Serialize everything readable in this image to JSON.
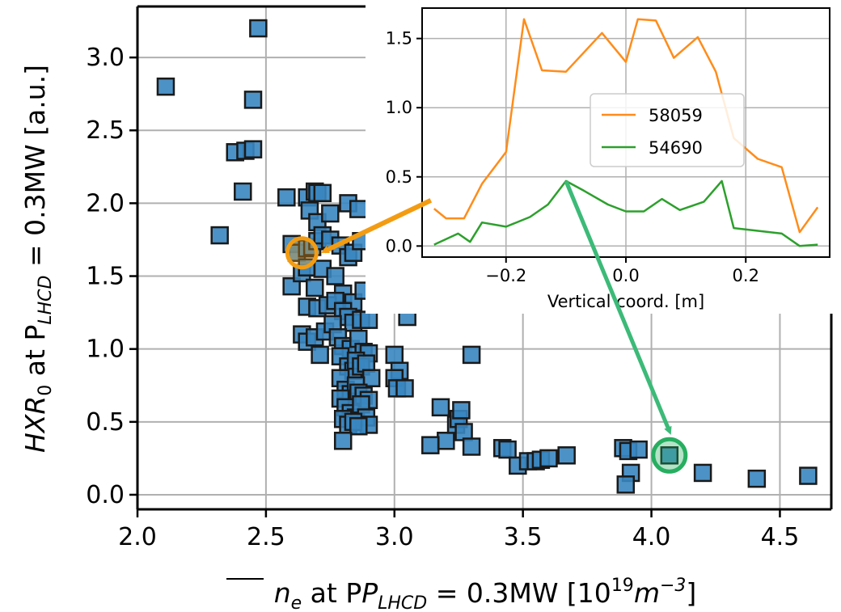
{
  "chart_data": [
    {
      "type": "scatter",
      "xlim": [
        2.0,
        4.7
      ],
      "ylim": [
        -0.1,
        3.35
      ],
      "grid": true,
      "xticks": [
        "2.0",
        "2.5",
        "3.0",
        "3.5",
        "4.0",
        "4.5"
      ],
      "yticks": [
        "0.0",
        "0.5",
        "1.0",
        "1.5",
        "2.0",
        "2.5",
        "3.0"
      ],
      "xlabel": {
        "prefix": "n",
        "sub": "e",
        "mid": " at P",
        "sub2": "LHCD",
        "eq": " = 0.3MW [10",
        "sup": "19",
        "unit": "m",
        "sup2": "−3",
        "end": "]"
      },
      "ylabel": {
        "pre": "HXR",
        "sub": "0",
        "mid": " at P",
        "sub2": "LHCD",
        "end": " = 0.3MW [a.u.]"
      },
      "marker_color": "#3a86c0",
      "highlight_orange": {
        "x": 2.64,
        "y": 1.66,
        "color": "#f39c12"
      },
      "highlight_green": {
        "x": 4.07,
        "y": 0.27,
        "color": "#27ae60"
      },
      "points": [
        [
          2.11,
          2.8
        ],
        [
          2.47,
          3.2
        ],
        [
          2.45,
          2.71
        ],
        [
          2.38,
          2.35
        ],
        [
          2.42,
          2.36
        ],
        [
          2.45,
          2.37
        ],
        [
          2.41,
          2.08
        ],
        [
          2.32,
          1.78
        ],
        [
          2.58,
          2.04
        ],
        [
          2.66,
          2.04
        ],
        [
          2.69,
          2.08
        ],
        [
          2.7,
          2.07
        ],
        [
          2.72,
          2.07
        ],
        [
          2.67,
          1.95
        ],
        [
          2.7,
          1.87
        ],
        [
          2.75,
          1.93
        ],
        [
          2.82,
          2.0
        ],
        [
          2.86,
          1.96
        ],
        [
          2.6,
          1.72
        ],
        [
          2.62,
          1.66
        ],
        [
          2.66,
          1.69
        ],
        [
          2.68,
          1.7
        ],
        [
          2.7,
          1.74
        ],
        [
          2.72,
          1.78
        ],
        [
          2.75,
          1.75
        ],
        [
          2.79,
          1.71
        ],
        [
          2.82,
          1.63
        ],
        [
          2.84,
          1.66
        ],
        [
          2.87,
          1.74
        ],
        [
          2.6,
          1.43
        ],
        [
          2.64,
          1.52
        ],
        [
          2.66,
          1.56
        ],
        [
          2.69,
          1.42
        ],
        [
          2.72,
          1.55
        ],
        [
          2.77,
          1.5
        ],
        [
          2.8,
          1.38
        ],
        [
          2.84,
          1.32
        ],
        [
          2.88,
          1.4
        ],
        [
          2.66,
          1.29
        ],
        [
          2.7,
          1.28
        ],
        [
          2.74,
          1.3
        ],
        [
          2.77,
          1.33
        ],
        [
          2.8,
          1.26
        ],
        [
          2.82,
          1.22
        ],
        [
          2.84,
          1.18
        ],
        [
          2.87,
          1.2
        ],
        [
          2.9,
          1.2
        ],
        [
          2.64,
          1.1
        ],
        [
          2.66,
          1.05
        ],
        [
          2.69,
          1.08
        ],
        [
          2.71,
          0.96
        ],
        [
          2.73,
          1.12
        ],
        [
          2.76,
          1.17
        ],
        [
          2.78,
          1.08
        ],
        [
          2.8,
          1.02
        ],
        [
          2.83,
          1.0
        ],
        [
          2.86,
          1.07
        ],
        [
          2.88,
          0.98
        ],
        [
          2.9,
          0.97
        ],
        [
          2.79,
          0.95
        ],
        [
          2.82,
          0.88
        ],
        [
          2.84,
          0.85
        ],
        [
          2.85,
          0.92
        ],
        [
          2.87,
          0.88
        ],
        [
          2.89,
          0.9
        ],
        [
          2.91,
          0.8
        ],
        [
          2.79,
          0.8
        ],
        [
          2.81,
          0.72
        ],
        [
          2.83,
          0.69
        ],
        [
          2.85,
          0.75
        ],
        [
          2.86,
          0.7
        ],
        [
          2.88,
          0.68
        ],
        [
          2.9,
          0.65
        ],
        [
          2.79,
          0.66
        ],
        [
          2.81,
          0.6
        ],
        [
          2.83,
          0.56
        ],
        [
          2.85,
          0.53
        ],
        [
          2.87,
          0.62
        ],
        [
          2.89,
          0.53
        ],
        [
          2.9,
          0.48
        ],
        [
          2.8,
          0.52
        ],
        [
          2.82,
          0.48
        ],
        [
          2.84,
          0.5
        ],
        [
          2.86,
          0.47
        ],
        [
          2.8,
          0.37
        ],
        [
          3.0,
          0.96
        ],
        [
          3.02,
          0.85
        ],
        [
          3.0,
          0.8
        ],
        [
          3.01,
          0.73
        ],
        [
          3.04,
          0.73
        ],
        [
          3.05,
          1.22
        ],
        [
          3.18,
          0.6
        ],
        [
          3.2,
          0.37
        ],
        [
          3.24,
          0.48
        ],
        [
          3.25,
          0.52
        ],
        [
          3.26,
          0.58
        ],
        [
          3.27,
          0.43
        ],
        [
          3.3,
          0.96
        ],
        [
          3.14,
          0.34
        ],
        [
          3.3,
          0.33
        ],
        [
          3.42,
          0.32
        ],
        [
          3.44,
          0.31
        ],
        [
          3.48,
          0.2
        ],
        [
          3.52,
          0.23
        ],
        [
          3.55,
          0.23
        ],
        [
          3.57,
          0.24
        ],
        [
          3.6,
          0.25
        ],
        [
          3.67,
          0.27
        ],
        [
          3.89,
          0.32
        ],
        [
          3.91,
          0.3
        ],
        [
          3.95,
          0.31
        ],
        [
          3.92,
          0.15
        ],
        [
          3.9,
          0.07
        ],
        [
          4.07,
          0.27
        ],
        [
          4.2,
          0.15
        ],
        [
          4.41,
          0.11
        ],
        [
          4.61,
          0.13
        ]
      ]
    },
    {
      "type": "line",
      "xlim": [
        -0.34,
        0.34
      ],
      "ylim": [
        -0.08,
        1.72
      ],
      "grid": true,
      "xlabel": "Vertical coord. [m]",
      "xticks": [
        "−0.2",
        "0.0",
        "0.2"
      ],
      "yticks": [
        "0.0",
        "0.5",
        "1.0",
        "1.5"
      ],
      "legend_position": "center",
      "series": [
        {
          "name": "58059",
          "color": "#ff8c1a",
          "x": [
            -0.32,
            -0.3,
            -0.27,
            -0.24,
            -0.2,
            -0.17,
            -0.14,
            -0.1,
            -0.04,
            0.0,
            0.02,
            0.05,
            0.08,
            0.12,
            0.15,
            0.18,
            0.22,
            0.26,
            0.29,
            0.32
          ],
          "y": [
            0.27,
            0.2,
            0.2,
            0.45,
            0.68,
            1.64,
            1.27,
            1.26,
            1.54,
            1.33,
            1.64,
            1.63,
            1.36,
            1.51,
            1.26,
            0.78,
            0.63,
            0.57,
            0.1,
            0.28
          ]
        },
        {
          "name": "54690",
          "color": "#2ca02c",
          "x": [
            -0.32,
            -0.28,
            -0.26,
            -0.24,
            -0.2,
            -0.16,
            -0.13,
            -0.1,
            -0.07,
            -0.03,
            0.0,
            0.03,
            0.06,
            0.09,
            0.13,
            0.16,
            0.18,
            0.22,
            0.26,
            0.29,
            0.32
          ],
          "y": [
            0.01,
            0.09,
            0.03,
            0.17,
            0.14,
            0.21,
            0.3,
            0.47,
            0.4,
            0.3,
            0.25,
            0.25,
            0.34,
            0.26,
            0.32,
            0.47,
            0.13,
            0.11,
            0.09,
            0.0,
            0.01
          ]
        }
      ]
    }
  ]
}
